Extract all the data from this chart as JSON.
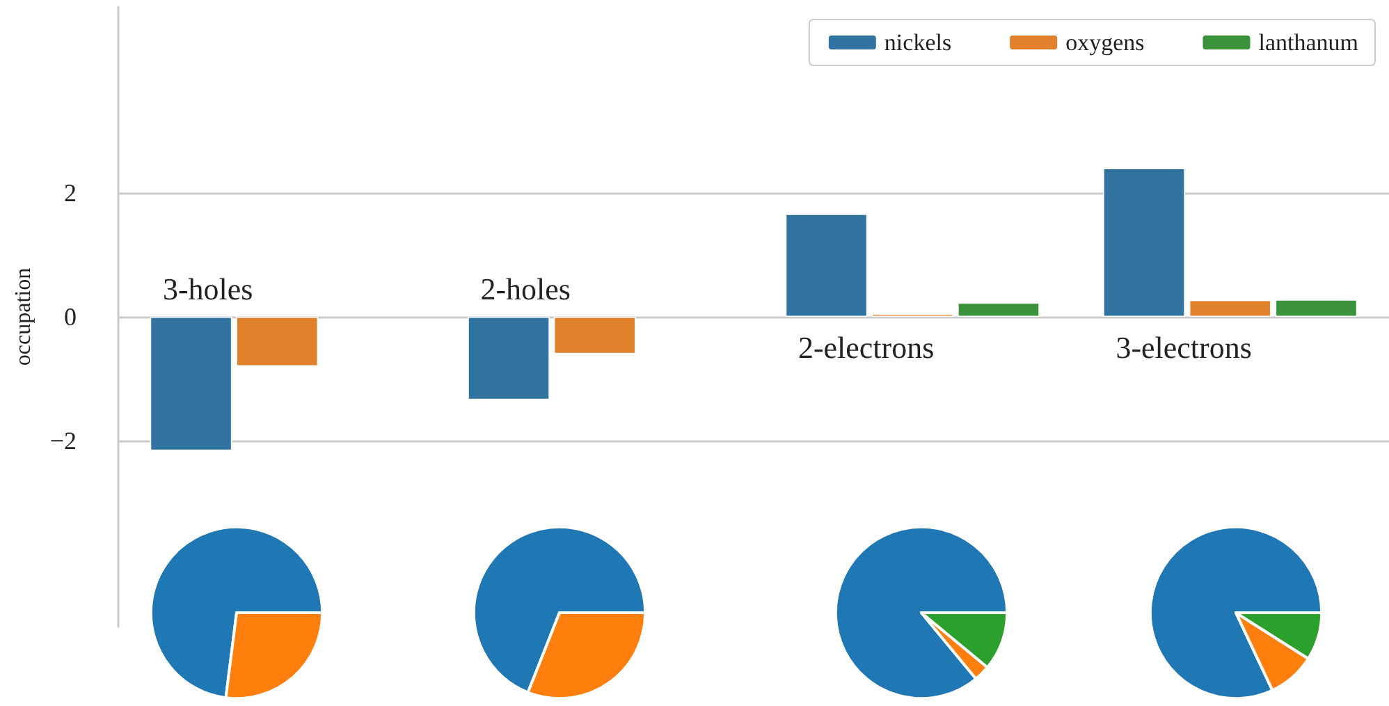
{
  "chart_data": [
    {
      "type": "bar",
      "ylabel": "occupation",
      "categories": [
        null,
        null,
        null,
        null
      ],
      "series": [
        {
          "name": "nickels",
          "color": "#3274a1",
          "values": [
            -2.16,
            -1.34,
            1.66,
            2.4
          ]
        },
        {
          "name": "oxygens",
          "color": "#e1812c",
          "values": [
            -0.8,
            -0.6,
            0.05,
            0.27
          ]
        },
        {
          "name": "lanthanum",
          "color": "#3a923a",
          "values": [
            null,
            null,
            0.23,
            0.28
          ]
        }
      ],
      "ylim": [
        -5,
        5
      ],
      "yticks": [
        -2,
        0,
        2
      ],
      "grid": "y",
      "legend": "top right",
      "tick_labels": "y",
      "annotations": [
        "3-holes",
        "2-holes",
        "2-electrons",
        "3-electrons"
      ]
    },
    {
      "type": "pie",
      "categories": [
        null,
        null
      ],
      "values": [
        73,
        27
      ],
      "colors": [
        "#1f77b4",
        "#ff7f0e"
      ]
    },
    {
      "type": "pie",
      "categories": [
        null,
        null
      ],
      "values": [
        69,
        31
      ],
      "colors": [
        "#1f77b4",
        "#ff7f0e"
      ]
    },
    {
      "type": "pie",
      "categories": [
        null,
        null,
        null
      ],
      "values": [
        86,
        3,
        11
      ],
      "colors": [
        "#1f77b4",
        "#ff7f0e",
        "#2ca02c"
      ]
    },
    {
      "type": "pie",
      "categories": [
        null,
        null,
        null
      ],
      "values": [
        82,
        9,
        9
      ],
      "colors": [
        "#1f77b4",
        "#ff7f0e",
        "#2ca02c"
      ]
    }
  ]
}
